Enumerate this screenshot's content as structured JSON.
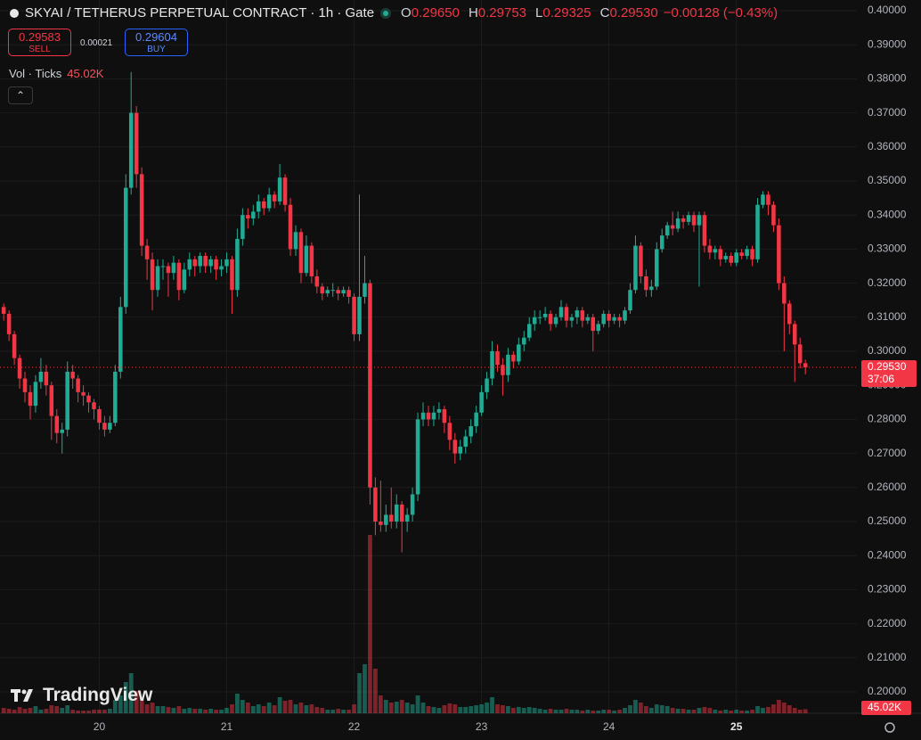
{
  "chart_data": {
    "type": "candlestick",
    "symbol": "SKYAI / TETHERUS PERPETUAL CONTRACT · 1h · Gate",
    "ohlc_legend": {
      "open": {
        "key": "O",
        "value": "0.29650"
      },
      "high": {
        "key": "H",
        "value": "0.29753"
      },
      "low": {
        "key": "L",
        "value": "0.29325"
      },
      "close": {
        "key": "C",
        "value": "0.29530"
      },
      "change": "−0.00128 (−0.43%)"
    },
    "trade": {
      "sell": {
        "price": "0.29583",
        "label": "SELL"
      },
      "spread": "0.00021",
      "buy": {
        "price": "0.29604",
        "label": "BUY"
      }
    },
    "watermark": "TradingView",
    "up_color": "#22ab94",
    "down_color": "#f23645",
    "xlim": [
      -0.7,
      160.7
    ],
    "xticks": [
      {
        "value": 18,
        "label": "20"
      },
      {
        "value": 42,
        "label": "21"
      },
      {
        "value": 66,
        "label": "22"
      },
      {
        "value": 90,
        "label": "23"
      },
      {
        "value": 114,
        "label": "24"
      },
      {
        "value": 138,
        "label": "25"
      }
    ],
    "ylim": [
      0.19372,
      0.40314
    ],
    "yticks": [
      {
        "value": 0.2,
        "label": "0.20000"
      },
      {
        "value": 0.21,
        "label": "0.21000"
      },
      {
        "value": 0.22,
        "label": "0.22000"
      },
      {
        "value": 0.23,
        "label": "0.23000"
      },
      {
        "value": 0.24,
        "label": "0.24000"
      },
      {
        "value": 0.25,
        "label": "0.25000"
      },
      {
        "value": 0.26,
        "label": "0.26000"
      },
      {
        "value": 0.27,
        "label": "0.27000"
      },
      {
        "value": 0.28,
        "label": "0.28000"
      },
      {
        "value": 0.29,
        "label": "0.29000"
      },
      {
        "value": 0.3,
        "label": "0.30000"
      },
      {
        "value": 0.31,
        "label": "0.31000"
      },
      {
        "value": 0.32,
        "label": "0.32000"
      },
      {
        "value": 0.33,
        "label": "0.33000"
      },
      {
        "value": 0.34,
        "label": "0.34000"
      },
      {
        "value": 0.35,
        "label": "0.35000"
      },
      {
        "value": 0.36,
        "label": "0.36000"
      },
      {
        "value": 0.37,
        "label": "0.37000"
      },
      {
        "value": 0.38,
        "label": "0.38000"
      },
      {
        "value": 0.39,
        "label": "0.39000"
      },
      {
        "value": 0.4,
        "label": "0.40000"
      }
    ],
    "grid": true,
    "last_price": {
      "value": 0.2953,
      "label": "0.29530",
      "countdown": "37:06"
    },
    "candles": [
      [
        0.313,
        0.314,
        0.309,
        0.311
      ],
      [
        0.311,
        0.312,
        0.303,
        0.305
      ],
      [
        0.305,
        0.306,
        0.296,
        0.298
      ],
      [
        0.298,
        0.299,
        0.289,
        0.292
      ],
      [
        0.292,
        0.294,
        0.285,
        0.288
      ],
      [
        0.288,
        0.29,
        0.28,
        0.284
      ],
      [
        0.284,
        0.293,
        0.282,
        0.291
      ],
      [
        0.291,
        0.298,
        0.289,
        0.294
      ],
      [
        0.294,
        0.296,
        0.287,
        0.29
      ],
      [
        0.29,
        0.291,
        0.274,
        0.281
      ],
      [
        0.281,
        0.283,
        0.273,
        0.276
      ],
      [
        0.276,
        0.279,
        0.27,
        0.277
      ],
      [
        0.277,
        0.297,
        0.275,
        0.294
      ],
      [
        0.294,
        0.296,
        0.289,
        0.292
      ],
      [
        0.292,
        0.293,
        0.285,
        0.288
      ],
      [
        0.288,
        0.29,
        0.284,
        0.287
      ],
      [
        0.287,
        0.288,
        0.282,
        0.285
      ],
      [
        0.285,
        0.286,
        0.28,
        0.283
      ],
      [
        0.283,
        0.284,
        0.277,
        0.279
      ],
      [
        0.279,
        0.281,
        0.275,
        0.277
      ],
      [
        0.277,
        0.281,
        0.276,
        0.279
      ],
      [
        0.279,
        0.296,
        0.278,
        0.294
      ],
      [
        0.294,
        0.316,
        0.292,
        0.313
      ],
      [
        0.313,
        0.352,
        0.311,
        0.348
      ],
      [
        0.348,
        0.382,
        0.346,
        0.37
      ],
      [
        0.37,
        0.372,
        0.348,
        0.352
      ],
      [
        0.352,
        0.354,
        0.328,
        0.331
      ],
      [
        0.331,
        0.333,
        0.321,
        0.327
      ],
      [
        0.327,
        0.329,
        0.312,
        0.318
      ],
      [
        0.318,
        0.327,
        0.316,
        0.325
      ],
      [
        0.325,
        0.327,
        0.321,
        0.325
      ],
      [
        0.325,
        0.326,
        0.316,
        0.323
      ],
      [
        0.323,
        0.328,
        0.321,
        0.326
      ],
      [
        0.326,
        0.327,
        0.315,
        0.318
      ],
      [
        0.318,
        0.326,
        0.317,
        0.324
      ],
      [
        0.324,
        0.329,
        0.322,
        0.327
      ],
      [
        0.327,
        0.328,
        0.322,
        0.325
      ],
      [
        0.325,
        0.329,
        0.323,
        0.328
      ],
      [
        0.328,
        0.329,
        0.323,
        0.325
      ],
      [
        0.325,
        0.328,
        0.323,
        0.327
      ],
      [
        0.327,
        0.328,
        0.321,
        0.324
      ],
      [
        0.324,
        0.327,
        0.322,
        0.325
      ],
      [
        0.325,
        0.329,
        0.323,
        0.327
      ],
      [
        0.327,
        0.328,
        0.311,
        0.318
      ],
      [
        0.318,
        0.336,
        0.316,
        0.333
      ],
      [
        0.333,
        0.342,
        0.331,
        0.34
      ],
      [
        0.34,
        0.342,
        0.336,
        0.339
      ],
      [
        0.339,
        0.343,
        0.337,
        0.341
      ],
      [
        0.341,
        0.346,
        0.339,
        0.344
      ],
      [
        0.344,
        0.345,
        0.34,
        0.342
      ],
      [
        0.342,
        0.348,
        0.341,
        0.346
      ],
      [
        0.346,
        0.347,
        0.342,
        0.344
      ],
      [
        0.344,
        0.355,
        0.343,
        0.351
      ],
      [
        0.351,
        0.352,
        0.341,
        0.343
      ],
      [
        0.343,
        0.345,
        0.328,
        0.33
      ],
      [
        0.33,
        0.337,
        0.328,
        0.335
      ],
      [
        0.335,
        0.336,
        0.32,
        0.323
      ],
      [
        0.323,
        0.334,
        0.322,
        0.331
      ],
      [
        0.331,
        0.332,
        0.32,
        0.322
      ],
      [
        0.322,
        0.324,
        0.317,
        0.319
      ],
      [
        0.319,
        0.32,
        0.315,
        0.317
      ],
      [
        0.317,
        0.319,
        0.316,
        0.318
      ],
      [
        0.318,
        0.32,
        0.316,
        0.318
      ],
      [
        0.318,
        0.319,
        0.315,
        0.317
      ],
      [
        0.317,
        0.319,
        0.316,
        0.318
      ],
      [
        0.318,
        0.319,
        0.314,
        0.316
      ],
      [
        0.316,
        0.317,
        0.303,
        0.305
      ],
      [
        0.305,
        0.346,
        0.303,
        0.316
      ],
      [
        0.316,
        0.328,
        0.314,
        0.32
      ],
      [
        0.32,
        0.321,
        0.255,
        0.26
      ],
      [
        0.26,
        0.263,
        0.246,
        0.25
      ],
      [
        0.25,
        0.262,
        0.247,
        0.249
      ],
      [
        0.249,
        0.255,
        0.247,
        0.252
      ],
      [
        0.252,
        0.26,
        0.248,
        0.25
      ],
      [
        0.25,
        0.258,
        0.248,
        0.255
      ],
      [
        0.255,
        0.256,
        0.241,
        0.25
      ],
      [
        0.25,
        0.254,
        0.247,
        0.252
      ],
      [
        0.252,
        0.26,
        0.25,
        0.258
      ],
      [
        0.258,
        0.282,
        0.256,
        0.28
      ],
      [
        0.28,
        0.285,
        0.278,
        0.282
      ],
      [
        0.282,
        0.284,
        0.278,
        0.28
      ],
      [
        0.28,
        0.284,
        0.278,
        0.282
      ],
      [
        0.282,
        0.285,
        0.28,
        0.283
      ],
      [
        0.283,
        0.284,
        0.276,
        0.279
      ],
      [
        0.279,
        0.281,
        0.271,
        0.274
      ],
      [
        0.274,
        0.276,
        0.267,
        0.27
      ],
      [
        0.27,
        0.274,
        0.268,
        0.272
      ],
      [
        0.272,
        0.277,
        0.27,
        0.275
      ],
      [
        0.275,
        0.28,
        0.273,
        0.278
      ],
      [
        0.278,
        0.284,
        0.276,
        0.282
      ],
      [
        0.282,
        0.29,
        0.281,
        0.288
      ],
      [
        0.288,
        0.294,
        0.286,
        0.292
      ],
      [
        0.292,
        0.303,
        0.29,
        0.3
      ],
      [
        0.3,
        0.302,
        0.294,
        0.296
      ],
      [
        0.296,
        0.298,
        0.287,
        0.293
      ],
      [
        0.293,
        0.301,
        0.291,
        0.299
      ],
      [
        0.299,
        0.3,
        0.295,
        0.297
      ],
      [
        0.297,
        0.304,
        0.296,
        0.302
      ],
      [
        0.302,
        0.306,
        0.3,
        0.304
      ],
      [
        0.304,
        0.31,
        0.303,
        0.308
      ],
      [
        0.308,
        0.312,
        0.306,
        0.31
      ],
      [
        0.31,
        0.312,
        0.308,
        0.31
      ],
      [
        0.31,
        0.313,
        0.309,
        0.311
      ],
      [
        0.311,
        0.312,
        0.306,
        0.308
      ],
      [
        0.308,
        0.311,
        0.307,
        0.31
      ],
      [
        0.31,
        0.315,
        0.309,
        0.313
      ],
      [
        0.313,
        0.314,
        0.307,
        0.309
      ],
      [
        0.309,
        0.311,
        0.307,
        0.31
      ],
      [
        0.31,
        0.313,
        0.308,
        0.312
      ],
      [
        0.312,
        0.313,
        0.307,
        0.309
      ],
      [
        0.309,
        0.311,
        0.308,
        0.31
      ],
      [
        0.31,
        0.311,
        0.3,
        0.306
      ],
      [
        0.306,
        0.309,
        0.305,
        0.308
      ],
      [
        0.308,
        0.312,
        0.307,
        0.311
      ],
      [
        0.311,
        0.312,
        0.307,
        0.309
      ],
      [
        0.309,
        0.311,
        0.308,
        0.31
      ],
      [
        0.31,
        0.311,
        0.307,
        0.309
      ],
      [
        0.309,
        0.313,
        0.308,
        0.312
      ],
      [
        0.312,
        0.32,
        0.311,
        0.318
      ],
      [
        0.318,
        0.334,
        0.317,
        0.331
      ],
      [
        0.331,
        0.332,
        0.32,
        0.322
      ],
      [
        0.322,
        0.324,
        0.316,
        0.318
      ],
      [
        0.318,
        0.321,
        0.316,
        0.319
      ],
      [
        0.319,
        0.332,
        0.318,
        0.33
      ],
      [
        0.33,
        0.336,
        0.329,
        0.334
      ],
      [
        0.334,
        0.338,
        0.333,
        0.337
      ],
      [
        0.337,
        0.341,
        0.334,
        0.336
      ],
      [
        0.336,
        0.341,
        0.335,
        0.339
      ],
      [
        0.339,
        0.34,
        0.336,
        0.338
      ],
      [
        0.338,
        0.341,
        0.337,
        0.34
      ],
      [
        0.34,
        0.341,
        0.335,
        0.337
      ],
      [
        0.337,
        0.341,
        0.319,
        0.34
      ],
      [
        0.34,
        0.341,
        0.329,
        0.331
      ],
      [
        0.331,
        0.333,
        0.327,
        0.329
      ],
      [
        0.329,
        0.331,
        0.327,
        0.33
      ],
      [
        0.33,
        0.331,
        0.325,
        0.327
      ],
      [
        0.327,
        0.329,
        0.326,
        0.328
      ],
      [
        0.328,
        0.329,
        0.325,
        0.326
      ],
      [
        0.326,
        0.33,
        0.325,
        0.329
      ],
      [
        0.329,
        0.33,
        0.327,
        0.328
      ],
      [
        0.328,
        0.331,
        0.327,
        0.33
      ],
      [
        0.33,
        0.331,
        0.325,
        0.327
      ],
      [
        0.327,
        0.345,
        0.326,
        0.343
      ],
      [
        0.343,
        0.347,
        0.342,
        0.346
      ],
      [
        0.346,
        0.347,
        0.34,
        0.343
      ],
      [
        0.343,
        0.344,
        0.335,
        0.337
      ],
      [
        0.337,
        0.339,
        0.318,
        0.32
      ],
      [
        0.32,
        0.322,
        0.3,
        0.314
      ],
      [
        0.314,
        0.315,
        0.305,
        0.308
      ],
      [
        0.308,
        0.309,
        0.291,
        0.302
      ],
      [
        0.302,
        0.304,
        0.295,
        0.2965
      ],
      [
        0.2965,
        0.29753,
        0.29325,
        0.2953
      ]
    ],
    "volume": {
      "title": "Vol · Ticks",
      "last_label": "45.02K",
      "lim": [
        0,
        3000
      ],
      "values": [
        60,
        50,
        40,
        70,
        50,
        60,
        80,
        40,
        50,
        90,
        80,
        60,
        90,
        40,
        30,
        30,
        30,
        40,
        40,
        40,
        50,
        150,
        200,
        350,
        450,
        250,
        180,
        100,
        120,
        80,
        80,
        70,
        60,
        80,
        50,
        60,
        50,
        50,
        40,
        50,
        40,
        40,
        60,
        100,
        220,
        150,
        120,
        80,
        100,
        80,
        120,
        90,
        180,
        140,
        150,
        100,
        120,
        90,
        100,
        70,
        60,
        40,
        40,
        50,
        40,
        40,
        100,
        450,
        550,
        2000,
        500,
        200,
        150,
        120,
        130,
        150,
        120,
        100,
        200,
        120,
        80,
        70,
        60,
        90,
        110,
        100,
        70,
        70,
        80,
        90,
        100,
        120,
        180,
        100,
        90,
        80,
        60,
        70,
        60,
        70,
        60,
        50,
        40,
        50,
        40,
        40,
        50,
        40,
        40,
        30,
        40,
        30,
        30,
        40,
        40,
        30,
        40,
        60,
        90,
        150,
        120,
        80,
        60,
        100,
        90,
        80,
        60,
        50,
        50,
        40,
        40,
        60,
        70,
        60,
        40,
        30,
        40,
        30,
        40,
        30,
        30,
        40,
        80,
        60,
        70,
        100,
        150,
        120,
        90,
        60,
        40,
        45.02
      ]
    }
  }
}
